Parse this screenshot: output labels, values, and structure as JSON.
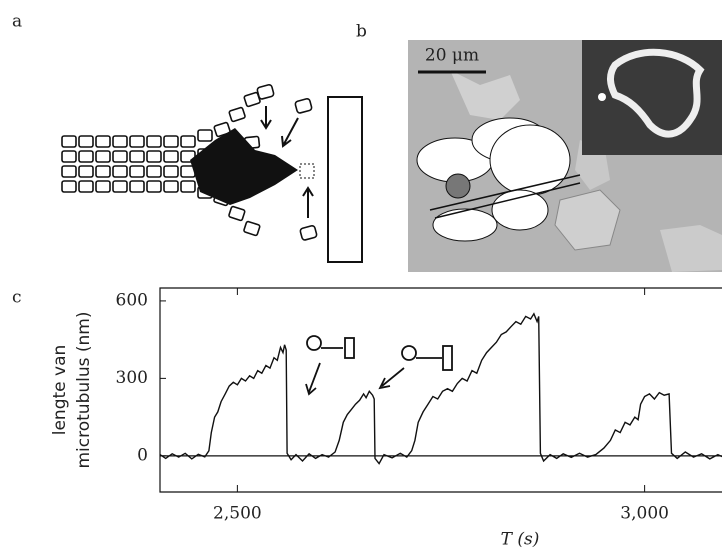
{
  "panel_labels": [
    "a",
    "b",
    "c"
  ],
  "scale_bar": "20 μm",
  "chart_data": {
    "type": "line",
    "ylabel": [
      "lengte van",
      "microtubulus (nm)"
    ],
    "xlabel": "T (s)",
    "color": "#111111",
    "xlim": [
      2405,
      3095
    ],
    "ylim": [
      -140,
      650
    ],
    "xticks": [
      {
        "value": 2500,
        "label": "2,500"
      },
      {
        "value": 3000,
        "label": "3,000"
      }
    ],
    "yticks": [
      0,
      300,
      600
    ],
    "grid": false,
    "x": [
      2405,
      2412,
      2420,
      2428,
      2436,
      2444,
      2452,
      2460,
      2465,
      2468,
      2472,
      2476,
      2480,
      2485,
      2490,
      2495,
      2500,
      2505,
      2510,
      2515,
      2520,
      2525,
      2530,
      2535,
      2540,
      2545,
      2549,
      2553,
      2556,
      2558,
      2560,
      2561,
      2566,
      2572,
      2580,
      2588,
      2596,
      2604,
      2612,
      2620,
      2625,
      2630,
      2635,
      2640,
      2645,
      2650,
      2655,
      2658,
      2662,
      2666,
      2668,
      2669,
      2674,
      2680,
      2690,
      2700,
      2708,
      2714,
      2718,
      2722,
      2728,
      2734,
      2740,
      2746,
      2752,
      2758,
      2764,
      2770,
      2776,
      2782,
      2788,
      2794,
      2800,
      2806,
      2812,
      2818,
      2824,
      2830,
      2836,
      2842,
      2848,
      2854,
      2860,
      2864,
      2868,
      2870,
      2872,
      2876,
      2884,
      2892,
      2900,
      2910,
      2920,
      2930,
      2940,
      2950,
      2958,
      2964,
      2970,
      2976,
      2982,
      2988,
      2992,
      2995,
      3000,
      3006,
      3012,
      3018,
      3024,
      3030,
      3033,
      3040,
      3050,
      3060,
      3070,
      3080,
      3090,
      3095
    ],
    "values": [
      5,
      -10,
      8,
      -5,
      10,
      -12,
      6,
      -4,
      20,
      90,
      150,
      170,
      210,
      240,
      270,
      285,
      275,
      300,
      290,
      310,
      300,
      330,
      320,
      350,
      340,
      380,
      370,
      420,
      400,
      430,
      410,
      10,
      -15,
      5,
      -20,
      8,
      -10,
      5,
      -5,
      15,
      60,
      130,
      160,
      180,
      200,
      215,
      240,
      225,
      250,
      235,
      220,
      -10,
      -30,
      5,
      -8,
      10,
      -5,
      20,
      60,
      130,
      170,
      200,
      230,
      220,
      250,
      260,
      250,
      280,
      300,
      290,
      330,
      320,
      370,
      400,
      420,
      440,
      470,
      480,
      500,
      520,
      510,
      540,
      530,
      550,
      520,
      540,
      10,
      -20,
      5,
      -10,
      8,
      -6,
      10,
      -5,
      5,
      30,
      60,
      100,
      90,
      130,
      120,
      150,
      140,
      200,
      230,
      240,
      220,
      245,
      235,
      240,
      10,
      -10,
      15,
      -5,
      8,
      -12,
      5,
      -3
    ]
  }
}
